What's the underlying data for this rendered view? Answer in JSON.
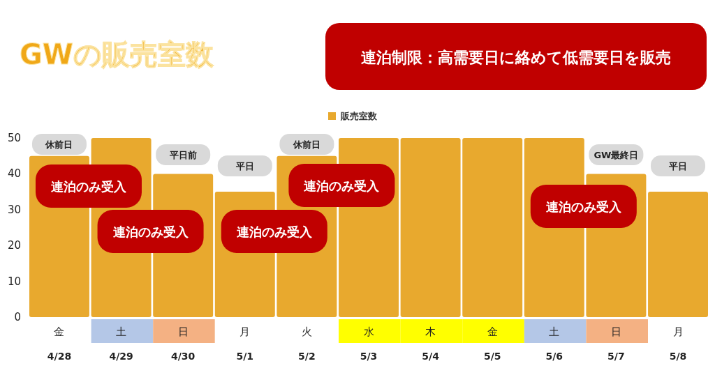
{
  "chart_data": {
    "type": "bar",
    "title": "GWの販売室数",
    "subtitle": "連泊制限：高需要日に絡めて低需要日を販売",
    "categories": [
      "4/28",
      "4/29",
      "4/30",
      "5/1",
      "5/2",
      "5/3",
      "5/4",
      "5/5",
      "5/6",
      "5/7",
      "5/8"
    ],
    "series": [
      {
        "name": "販売室数",
        "color": "#e8a92e",
        "values": [
          45,
          50,
          40,
          35,
          45,
          50,
          50,
          50,
          50,
          40,
          35
        ]
      }
    ],
    "ylim": [
      0,
      50
    ],
    "yticks": [
      0,
      10,
      20,
      30,
      40,
      50
    ],
    "grid": false,
    "legend": "top",
    "annotations": [
      "金",
      "土",
      "日",
      "月",
      "火",
      "水",
      "木",
      "金",
      "土",
      "日",
      "月",
      "休前日",
      "平日前",
      "平日",
      "休前日",
      "GW最終日",
      "平日",
      "連泊のみ受入",
      "連泊のみ受入",
      "連泊のみ受入",
      "連泊のみ受入",
      "連泊のみ受入"
    ]
  }
}
